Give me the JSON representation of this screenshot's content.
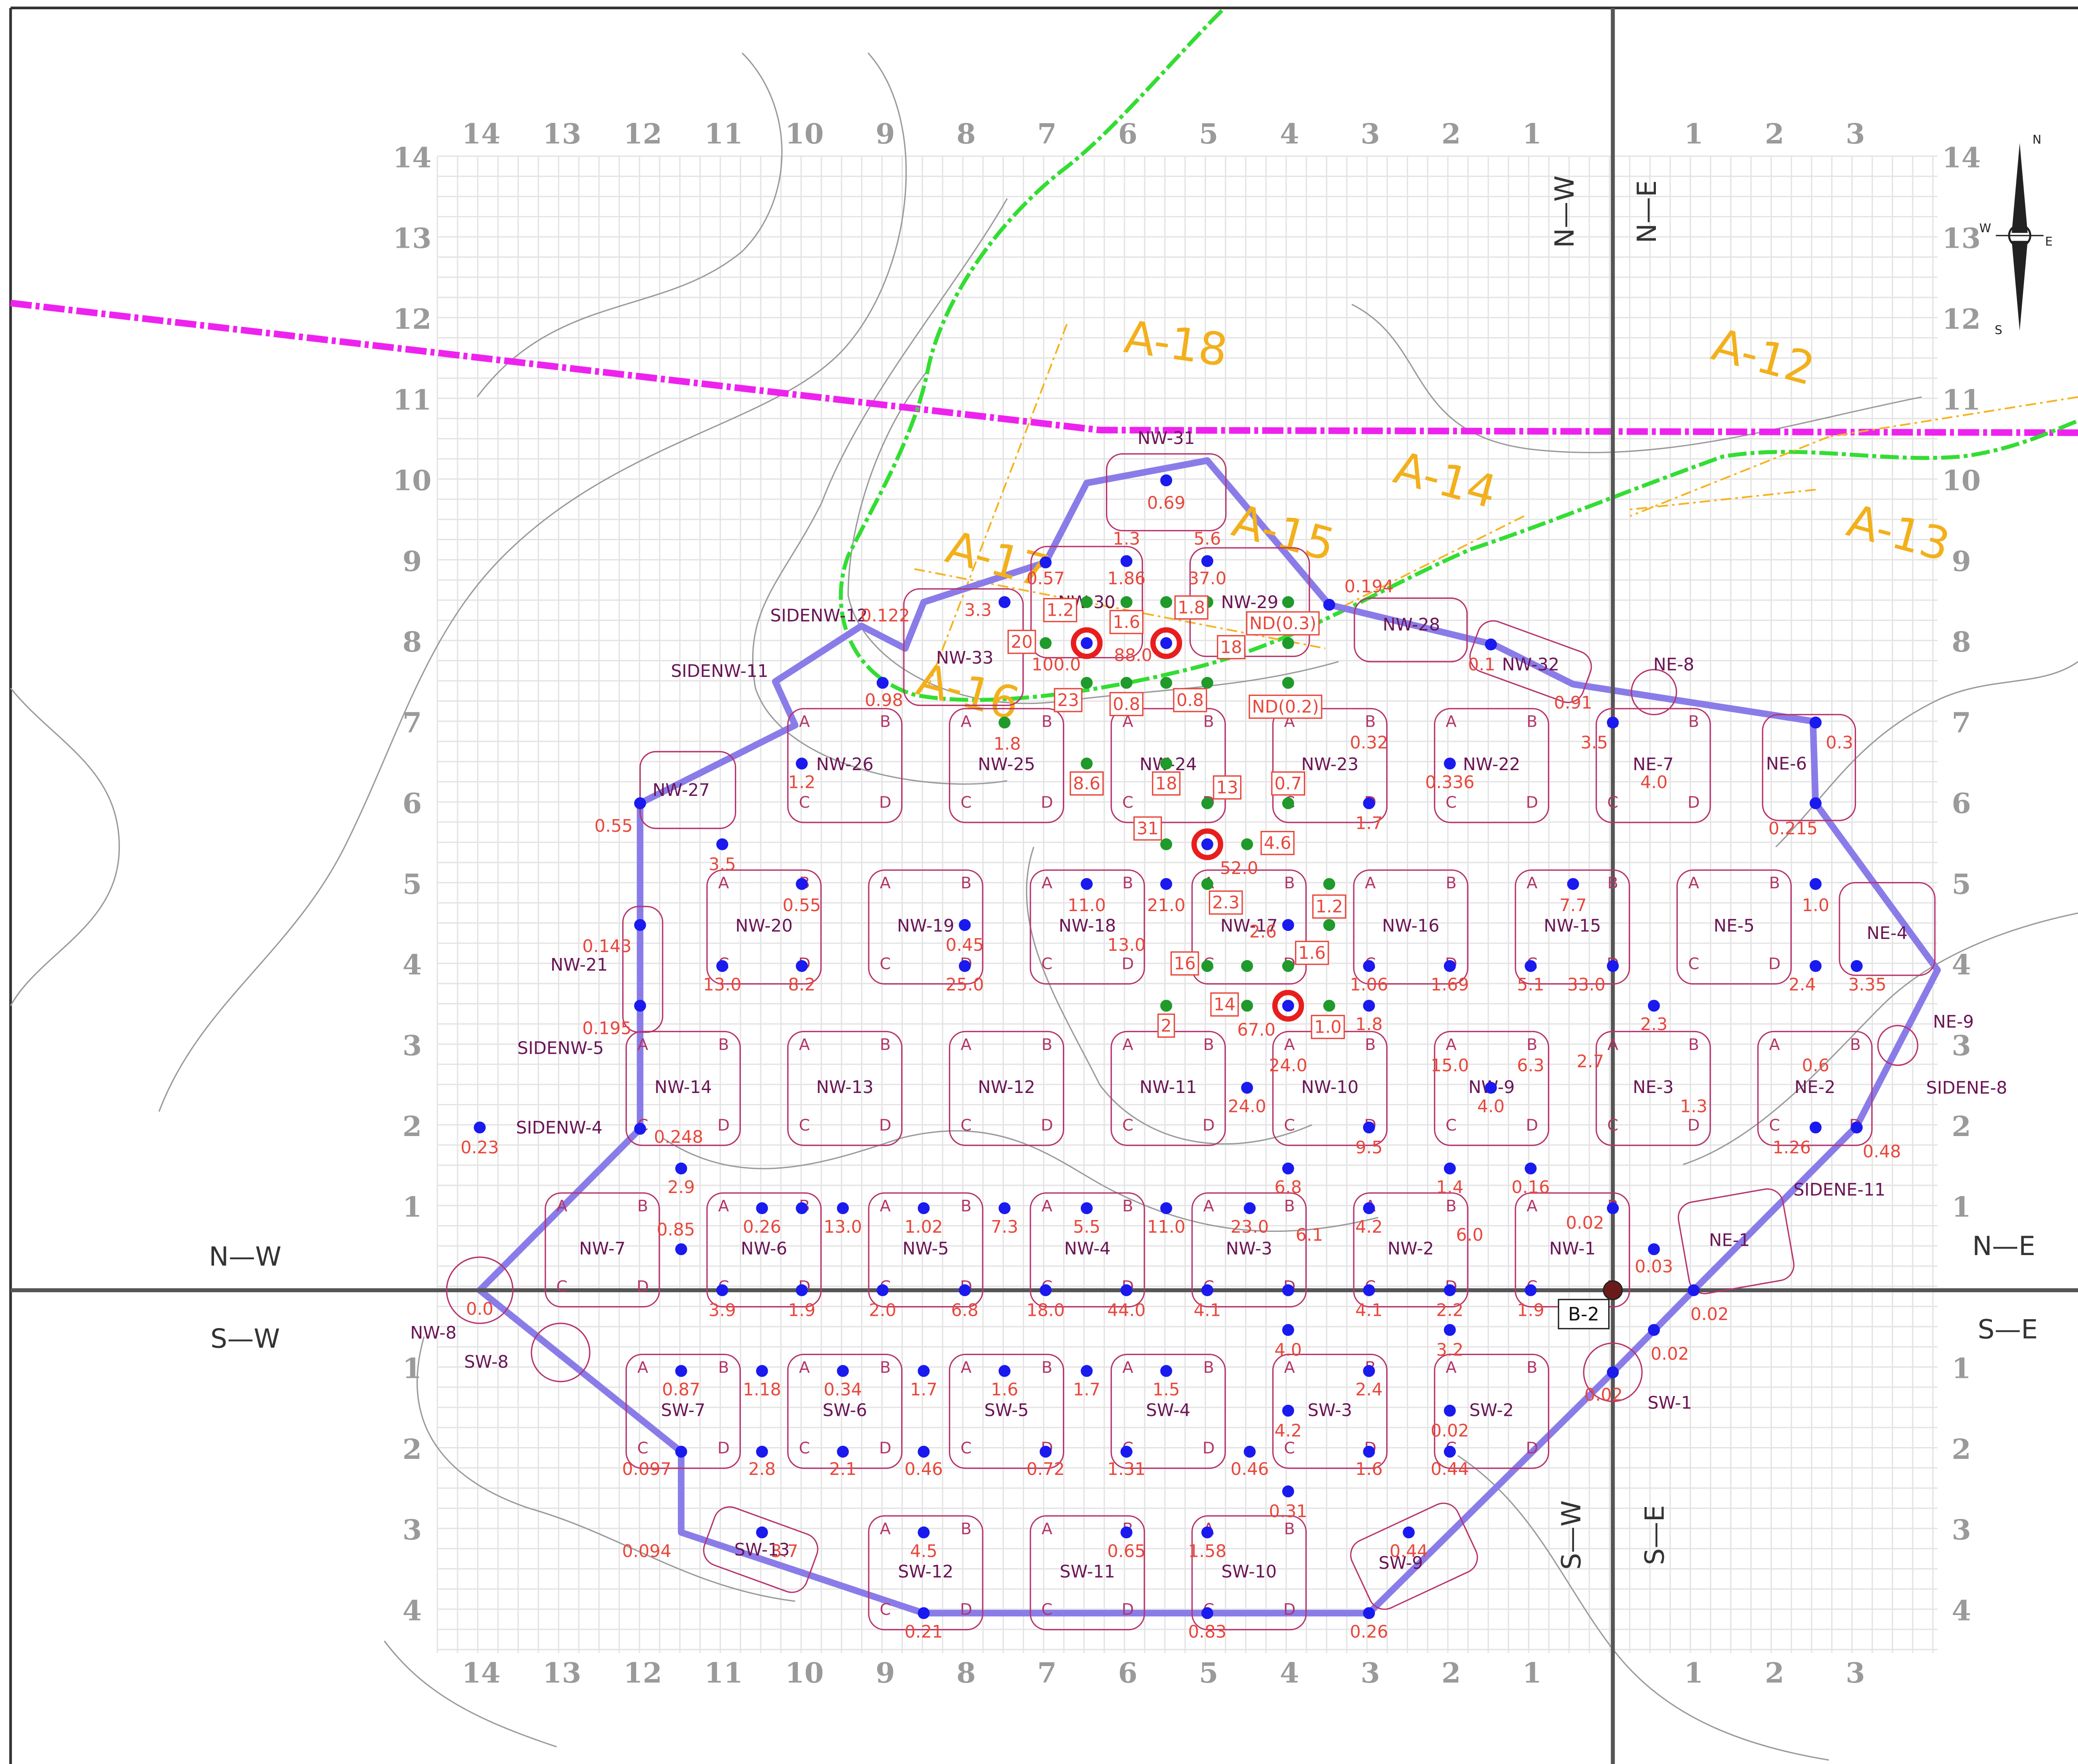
{
  "column_labels": [
    "14",
    "13",
    "12",
    "11",
    "10",
    "9",
    "8",
    "7",
    "6",
    "5",
    "4",
    "3",
    "2",
    "1",
    "1",
    "2",
    "3"
  ],
  "row_labels": [
    "14",
    "13",
    "12",
    "11",
    "10",
    "9",
    "8",
    "7",
    "6",
    "5",
    "4",
    "3",
    "2",
    "1",
    "1",
    "2",
    "3",
    "4"
  ],
  "quadrants": [
    "N—W",
    "N—E",
    "S—W",
    "S—E"
  ],
  "areas": [
    "A-12",
    "A-13",
    "A-14",
    "A-15",
    "A-16",
    "A-17",
    "A-18"
  ],
  "cells": [
    "NW-1",
    "NW-2",
    "NW-3",
    "NW-4",
    "NW-5",
    "NW-6",
    "NW-7",
    "NW-8",
    "NW-9",
    "NW-10",
    "NW-11",
    "NW-12",
    "NW-13",
    "NW-14",
    "NW-15",
    "NW-16",
    "NW-17",
    "NW-18",
    "NW-19",
    "NW-20",
    "NW-21",
    "NW-22",
    "NW-23",
    "NW-24",
    "NW-25",
    "NW-26",
    "NW-27",
    "NW-28",
    "NW-29",
    "NW-30",
    "NW-31",
    "NW-32",
    "NW-33",
    "NE-1",
    "NE-2",
    "NE-3",
    "NE-4",
    "NE-5",
    "NE-6",
    "NE-7",
    "NE-8",
    "NE-9",
    "SW-1",
    "SW-2",
    "SW-3",
    "SW-4",
    "SW-5",
    "SW-6",
    "SW-7",
    "SW-8",
    "SW-9",
    "SW-10",
    "SW-11",
    "SW-12",
    "SW-13",
    "SIDENW-4",
    "SIDENW-5",
    "SIDENW-11",
    "SIDENW-12",
    "SIDENE-8",
    "SIDENE-11"
  ],
  "corner_letters": [
    "A",
    "B",
    "C",
    "D"
  ],
  "samples": [
    "0.69",
    "1.3",
    "5.6",
    "0.57",
    "1.86",
    "37.0",
    "3.3",
    "0.122",
    "0.194",
    "100.0",
    "88.0",
    "0.98",
    "1.8",
    "0.1",
    "0.91",
    "3.5",
    "0.3",
    "1.2",
    "0.32",
    "0.336",
    "4.0",
    "0.215",
    "1.7",
    "0.55",
    "3.5",
    "52.0",
    "0.55",
    "11.0",
    "21.0",
    "7.7",
    "1.0",
    "0.143",
    "0.45",
    "13.0",
    "2.6",
    "13.0",
    "8.2",
    "25.0",
    "1.06",
    "1.69",
    "5.1",
    "33.0",
    "2.4",
    "3.35",
    "0.195",
    "67.0",
    "1.8",
    "2.3",
    "24.0",
    "15.0",
    "6.3",
    "2.7",
    "0.6",
    "4.0",
    "1.3",
    "24.0",
    "0.248",
    "0.23",
    "9.5",
    "1.26",
    "0.48",
    "2.9",
    "6.8",
    "1.4",
    "0.16",
    "0.85",
    "0.26",
    "13.0",
    "1.02",
    "7.3",
    "5.5",
    "11.0",
    "23.0",
    "6.1",
    "4.2",
    "6.0",
    "0.02",
    "0.03",
    "0.0",
    "3.9",
    "1.9",
    "2.0",
    "6.8",
    "18.0",
    "44.0",
    "4.1",
    "4.1",
    "2.2",
    "1.9",
    "0.02",
    "4.0",
    "3.2",
    "0.02",
    "0.87",
    "1.18",
    "0.34",
    "1.7",
    "1.6",
    "1.7",
    "1.5",
    "2.4",
    "0.02",
    "4.2",
    "0.02",
    "0.097",
    "2.8",
    "2.1",
    "0.46",
    "0.72",
    "1.31",
    "0.46",
    "1.6",
    "0.44",
    "0.31",
    "0.094",
    "3.7",
    "4.5",
    "0.65",
    "1.58",
    "0.44",
    "0.21",
    "0.83",
    "0.26"
  ],
  "boxed_results": [
    "1.2",
    "1.6",
    "1.8",
    "ND(0.3)",
    "20",
    "18",
    "23",
    "0.8",
    "0.8",
    "ND(0.2)",
    "8.6",
    "18",
    "13",
    "0.7",
    "31",
    "4.6",
    "2.3",
    "1.2",
    "1.6",
    "16",
    "14",
    "1.0",
    "2"
  ],
  "boring": "B-2",
  "compass": [
    "N",
    "E",
    "S",
    "W"
  ]
}
